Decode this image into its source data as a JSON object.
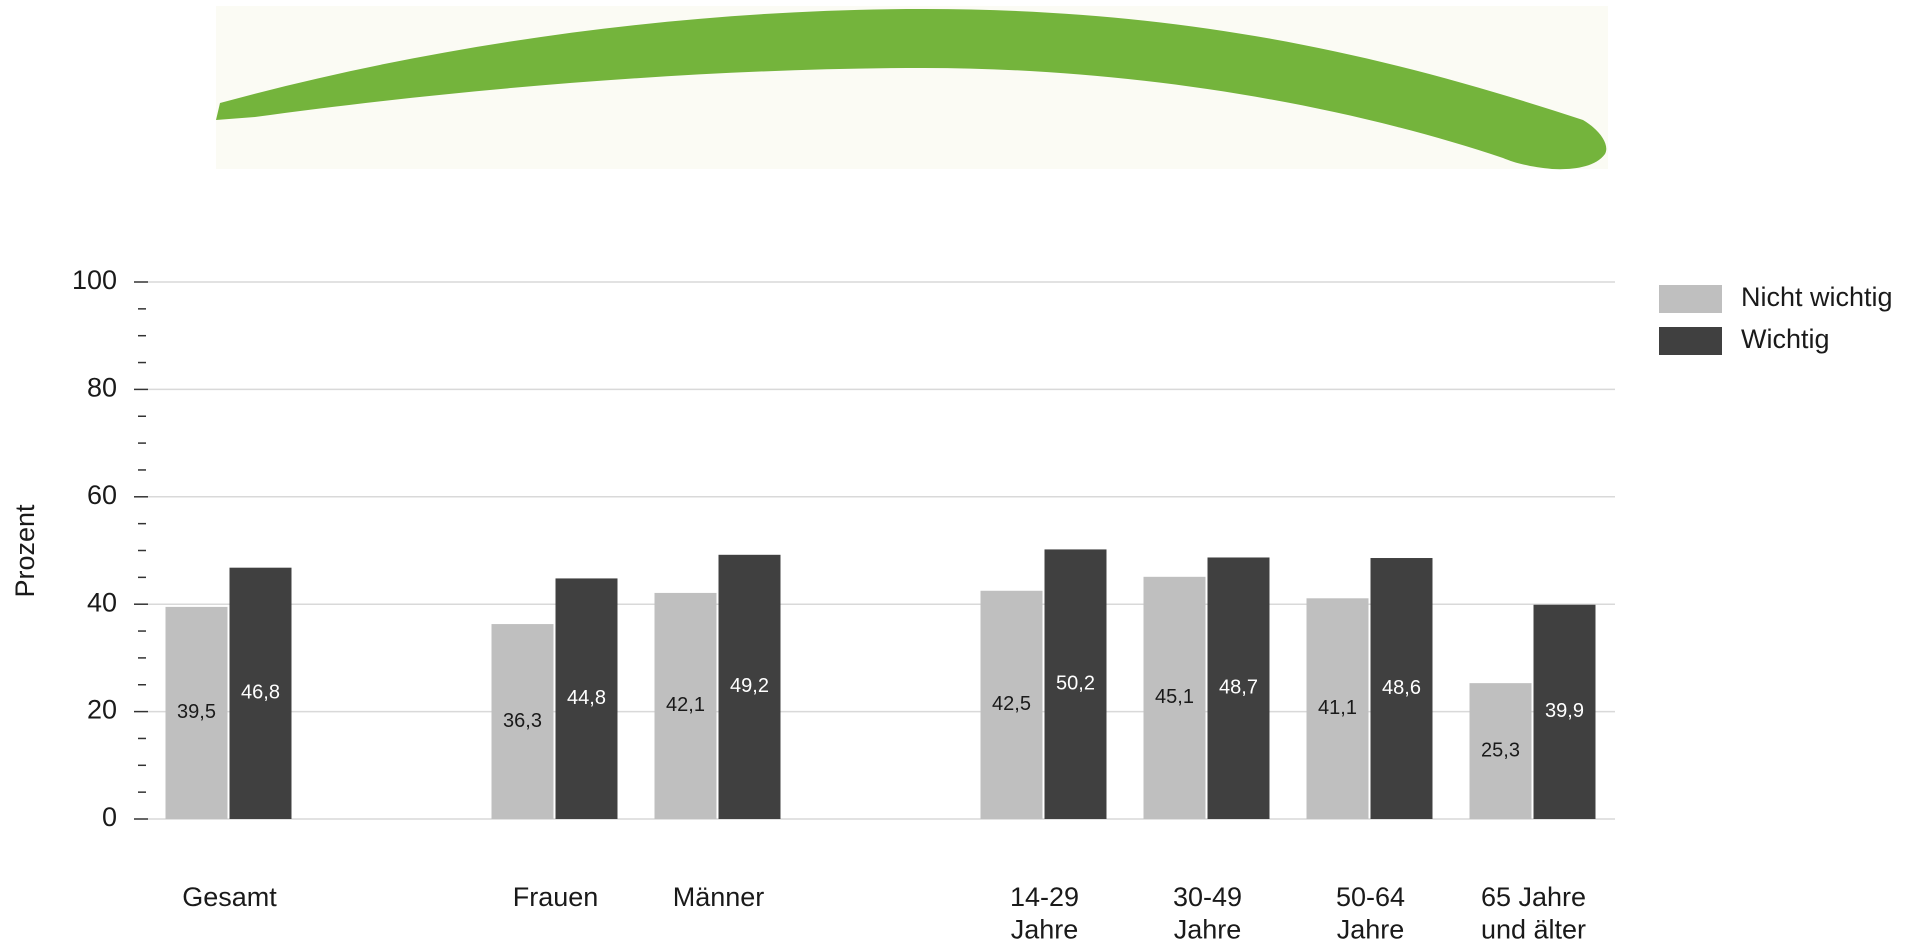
{
  "chart_data": {
    "type": "bar",
    "y_label": "Prozent",
    "categories": [
      "Gesamt",
      null,
      "Frauen",
      "Männer",
      null,
      "14-29\nJahre",
      "30-49\nJahre",
      "50-64\nJahre",
      "65 Jahre\nund älter"
    ],
    "series": [
      {
        "name": "Nicht wichtig",
        "color": "#bfbfbf",
        "label_color": "#1a1a1a",
        "values": [
          39.5,
          null,
          36.3,
          42.1,
          null,
          42.5,
          45.1,
          41.1,
          25.3
        ],
        "value_labels": [
          "39,5",
          null,
          "36,3",
          "42,1",
          null,
          "42,5",
          "45,1",
          "41,1",
          "25,3"
        ]
      },
      {
        "name": "Wichtig",
        "color": "#404040",
        "label_color": "#ffffff",
        "values": [
          46.8,
          null,
          44.8,
          49.2,
          null,
          50.2,
          48.7,
          48.6,
          39.9
        ],
        "value_labels": [
          "46,8",
          null,
          "44,8",
          "49,2",
          null,
          "50,2",
          "48,7",
          "48,6",
          "39,9"
        ]
      }
    ],
    "ylim": [
      0,
      100
    ],
    "yticks": [
      0,
      20,
      40,
      60,
      80,
      100
    ],
    "grid": true,
    "legend": "top-right"
  }
}
